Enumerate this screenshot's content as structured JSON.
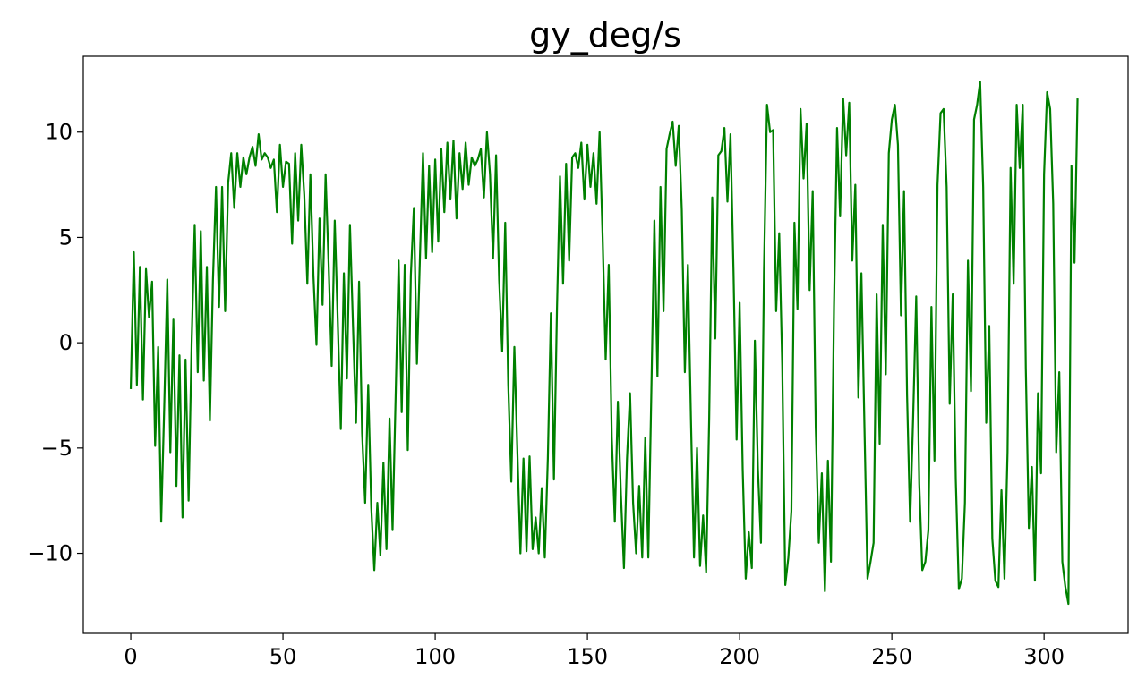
{
  "chart_data": {
    "type": "line",
    "title": "gy_deg/s",
    "xlabel": "",
    "ylabel": "",
    "xlim": [
      -15.6,
      327.6
    ],
    "ylim": [
      -13.8,
      13.6
    ],
    "x_ticks": [
      0,
      50,
      100,
      150,
      200,
      250,
      300
    ],
    "y_ticks": [
      -10,
      -5,
      0,
      5,
      10
    ],
    "x_tick_labels": [
      "0",
      "50",
      "100",
      "150",
      "200",
      "250",
      "300"
    ],
    "y_tick_labels": [
      "−10",
      "−5",
      "0",
      "5",
      "10"
    ],
    "grid": false,
    "series": [
      {
        "color": "#008000",
        "x_start": 0,
        "x_step": 1,
        "values": [
          -2.2,
          4.3,
          -2.0,
          3.6,
          -2.7,
          3.5,
          1.2,
          2.9,
          -4.9,
          -0.2,
          -8.5,
          -3.0,
          3.0,
          -5.2,
          1.1,
          -6.8,
          -0.6,
          -8.3,
          -0.8,
          -7.5,
          0.0,
          5.6,
          -1.4,
          5.3,
          -1.8,
          3.6,
          -3.7,
          3.0,
          7.4,
          1.7,
          7.4,
          1.5,
          7.6,
          9.0,
          6.4,
          9.0,
          7.4,
          8.8,
          8.0,
          8.8,
          9.3,
          8.4,
          9.9,
          8.7,
          9.0,
          8.8,
          8.3,
          8.7,
          6.2,
          9.4,
          7.4,
          8.6,
          8.5,
          4.7,
          9.0,
          5.8,
          9.4,
          7.0,
          2.8,
          8.0,
          3.2,
          -0.1,
          5.9,
          1.8,
          8.0,
          3.7,
          -1.1,
          5.8,
          1.0,
          -4.1,
          3.3,
          -1.7,
          5.6,
          0.8,
          -3.8,
          2.9,
          -4.3,
          -7.6,
          -2.0,
          -7.8,
          -10.8,
          -7.6,
          -10.1,
          -5.7,
          -9.8,
          -3.6,
          -8.9,
          -2.6,
          3.9,
          -3.3,
          3.7,
          -5.1,
          3.2,
          6.4,
          -1.0,
          4.1,
          9.0,
          4.0,
          8.4,
          4.3,
          8.7,
          4.8,
          9.2,
          6.2,
          9.5,
          6.8,
          9.6,
          5.9,
          9.0,
          7.3,
          9.5,
          7.5,
          8.8,
          8.4,
          8.7,
          9.2,
          6.9,
          10.0,
          8.0,
          4.0,
          8.9,
          3.0,
          -0.4,
          5.7,
          -2.0,
          -6.6,
          -0.2,
          -5.2,
          -10.0,
          -5.5,
          -9.9,
          -5.4,
          -9.8,
          -8.3,
          -10.0,
          -6.9,
          -10.2,
          -5.5,
          1.4,
          -6.5,
          1.6,
          7.9,
          2.8,
          8.5,
          3.9,
          8.8,
          9.0,
          8.3,
          9.5,
          6.8,
          9.4,
          7.4,
          9.0,
          6.6,
          10.0,
          5.0,
          -0.8,
          3.7,
          -4.5,
          -8.5,
          -2.8,
          -7.2,
          -10.7,
          -5.5,
          -2.4,
          -7.6,
          -10.0,
          -6.8,
          -10.2,
          -4.5,
          -10.2,
          -2.3,
          5.8,
          -1.6,
          7.4,
          1.5,
          9.2,
          9.9,
          10.5,
          8.4,
          10.3,
          6.3,
          -1.4,
          3.7,
          -3.6,
          -10.2,
          -5.0,
          -10.6,
          -8.2,
          -10.9,
          -3.6,
          6.9,
          0.2,
          8.9,
          9.1,
          10.2,
          6.7,
          9.9,
          3.3,
          -4.6,
          1.9,
          -6.0,
          -11.2,
          -9.0,
          -10.7,
          0.1,
          -6.0,
          -9.5,
          3.4,
          11.3,
          10.0,
          10.1,
          1.5,
          5.2,
          -1.1,
          -11.5,
          -10.2,
          -8.0,
          5.7,
          1.6,
          11.1,
          7.8,
          10.4,
          2.5,
          7.2,
          -4.0,
          -9.5,
          -6.2,
          -11.8,
          -5.6,
          -10.4,
          1.7,
          10.2,
          6.0,
          11.6,
          8.9,
          11.4,
          3.9,
          7.5,
          -2.6,
          3.3,
          -4.0,
          -11.2,
          -10.4,
          -9.5,
          2.3,
          -4.8,
          5.6,
          -1.5,
          9.0,
          10.6,
          11.3,
          9.4,
          1.3,
          7.2,
          -2.5,
          -8.5,
          -3.5,
          2.2,
          -6.7,
          -10.8,
          -10.4,
          -8.9,
          1.7,
          -5.6,
          7.5,
          10.9,
          11.1,
          7.4,
          -2.9,
          2.3,
          -6.5,
          -11.7,
          -11.2,
          -7.6,
          3.9,
          -2.3,
          10.6,
          11.3,
          12.4,
          7.4,
          -3.8,
          0.8,
          -9.3,
          -11.3,
          -11.6,
          -7.0,
          -11.2,
          -5.2,
          8.3,
          2.8,
          11.3,
          8.3,
          11.3,
          -1.2,
          -8.8,
          -5.9,
          -11.3,
          -2.4,
          -6.2,
          8.0,
          11.9,
          11.1,
          6.6,
          -5.2,
          -1.4,
          -10.4,
          -11.6,
          -12.4,
          8.4,
          3.8,
          11.6
        ]
      }
    ]
  }
}
